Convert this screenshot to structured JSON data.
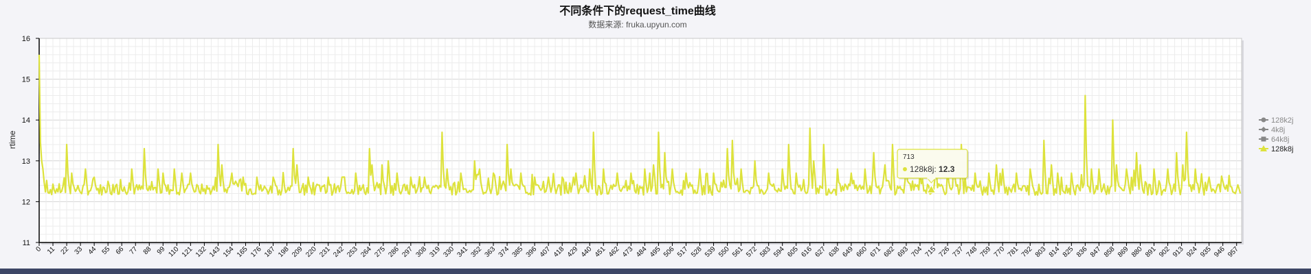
{
  "chart_data": {
    "type": "line",
    "title": "不同条件下的request_time曲线",
    "subtitle": "数据来源: fruka.upyun.com",
    "xlabel": "",
    "ylabel": "rtime",
    "ylim": [
      11,
      16
    ],
    "yticks": [
      11,
      12,
      13,
      14,
      15,
      16
    ],
    "xlim": [
      0,
      961
    ],
    "xticks": [
      0,
      11,
      22,
      33,
      44,
      55,
      66,
      77,
      88,
      99,
      110,
      121,
      132,
      143,
      154,
      165,
      176,
      187,
      198,
      209,
      220,
      231,
      242,
      253,
      264,
      275,
      286,
      297,
      308,
      319,
      330,
      341,
      352,
      363,
      374,
      385,
      396,
      407,
      418,
      429,
      440,
      451,
      462,
      473,
      484,
      495,
      506,
      517,
      528,
      539,
      550,
      561,
      572,
      583,
      594,
      605,
      616,
      627,
      638,
      649,
      660,
      671,
      682,
      693,
      704,
      715,
      726,
      737,
      748,
      759,
      770,
      781,
      792,
      803,
      814,
      825,
      836,
      847,
      858,
      869,
      880,
      891,
      902,
      913,
      924,
      935,
      946,
      957
    ],
    "grid": true,
    "legend_position": "right",
    "series": [
      {
        "name": "128k2j",
        "color": "#777777",
        "marker": "circle",
        "visible": false,
        "values": []
      },
      {
        "name": "4k8j",
        "color": "#777777",
        "marker": "diamond",
        "visible": false,
        "values": []
      },
      {
        "name": "64k8j",
        "color": "#777777",
        "marker": "square",
        "visible": false,
        "values": []
      },
      {
        "name": "128k8j",
        "color": "#dde23c",
        "marker": "triangle",
        "visible": true,
        "values_note": "",
        "peaks": [
          [
            0,
            15.6
          ],
          [
            2,
            13.0
          ],
          [
            3,
            12.8
          ],
          [
            22,
            13.4
          ],
          [
            26,
            12.7
          ],
          [
            37,
            12.8
          ],
          [
            44,
            12.6
          ],
          [
            55,
            12.5
          ],
          [
            74,
            12.8
          ],
          [
            84,
            13.3
          ],
          [
            95,
            12.8
          ],
          [
            99,
            12.7
          ],
          [
            108,
            12.8
          ],
          [
            114,
            12.7
          ],
          [
            121,
            12.7
          ],
          [
            143,
            13.4
          ],
          [
            146,
            12.9
          ],
          [
            154,
            12.7
          ],
          [
            163,
            12.6
          ],
          [
            174,
            12.6
          ],
          [
            187,
            12.6
          ],
          [
            203,
            13.3
          ],
          [
            206,
            12.9
          ],
          [
            215,
            12.6
          ],
          [
            231,
            12.6
          ],
          [
            242,
            12.6
          ],
          [
            253,
            12.7
          ],
          [
            264,
            13.3
          ],
          [
            266,
            12.9
          ],
          [
            274,
            12.9
          ],
          [
            279,
            13.0
          ],
          [
            286,
            12.7
          ],
          [
            297,
            12.6
          ],
          [
            308,
            12.6
          ],
          [
            322,
            13.7
          ],
          [
            326,
            12.8
          ],
          [
            337,
            12.7
          ],
          [
            348,
            13.0
          ],
          [
            352,
            12.8
          ],
          [
            363,
            12.7
          ],
          [
            374,
            13.4
          ],
          [
            377,
            12.8
          ],
          [
            385,
            12.7
          ],
          [
            396,
            12.6
          ],
          [
            407,
            12.6
          ],
          [
            418,
            12.6
          ],
          [
            429,
            12.7
          ],
          [
            440,
            12.8
          ],
          [
            443,
            13.7
          ],
          [
            451,
            12.8
          ],
          [
            462,
            12.7
          ],
          [
            473,
            12.7
          ],
          [
            484,
            12.8
          ],
          [
            491,
            12.9
          ],
          [
            495,
            13.7
          ],
          [
            500,
            13.2
          ],
          [
            506,
            12.8
          ],
          [
            517,
            12.7
          ],
          [
            528,
            12.8
          ],
          [
            539,
            12.7
          ],
          [
            550,
            13.3
          ],
          [
            554,
            13.5
          ],
          [
            561,
            12.8
          ],
          [
            572,
            13.0
          ],
          [
            583,
            12.7
          ],
          [
            594,
            12.8
          ],
          [
            599,
            13.4
          ],
          [
            605,
            12.7
          ],
          [
            616,
            13.8
          ],
          [
            619,
            13.0
          ],
          [
            627,
            13.4
          ],
          [
            638,
            12.8
          ],
          [
            649,
            12.7
          ],
          [
            660,
            12.8
          ],
          [
            667,
            13.2
          ],
          [
            676,
            12.9
          ],
          [
            682,
            13.4
          ],
          [
            693,
            12.9
          ],
          [
            704,
            12.7
          ],
          [
            715,
            12.3
          ],
          [
            726,
            12.8
          ],
          [
            731,
            13.1
          ],
          [
            737,
            13.4
          ],
          [
            748,
            12.7
          ],
          [
            759,
            12.7
          ],
          [
            765,
            12.9
          ],
          [
            770,
            12.8
          ],
          [
            781,
            12.7
          ],
          [
            792,
            12.8
          ],
          [
            803,
            13.5
          ],
          [
            809,
            12.9
          ],
          [
            814,
            12.7
          ],
          [
            825,
            12.7
          ],
          [
            836,
            14.6
          ],
          [
            841,
            12.8
          ],
          [
            847,
            12.8
          ],
          [
            858,
            14.0
          ],
          [
            861,
            12.9
          ],
          [
            869,
            12.8
          ],
          [
            877,
            13.2
          ],
          [
            880,
            12.9
          ],
          [
            891,
            12.8
          ],
          [
            902,
            12.8
          ],
          [
            909,
            13.2
          ],
          [
            914,
            12.9
          ],
          [
            917,
            13.7
          ],
          [
            924,
            12.8
          ],
          [
            935,
            12.6
          ],
          [
            946,
            12.5
          ],
          [
            957,
            12.3
          ],
          [
            960,
            12.2
          ]
        ],
        "baseline": 12.3,
        "n_points": 961
      }
    ],
    "tooltip": {
      "x_label": "713",
      "series_name": "128k8j",
      "value_text": "12.3",
      "x": 713,
      "y": 12.3
    }
  }
}
